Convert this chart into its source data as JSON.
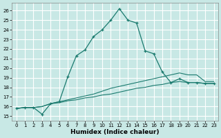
{
  "xlabel": "Humidex (Indice chaleur)",
  "bg_color": "#c8e8e5",
  "grid_color": "#ffffff",
  "line_color": "#1a7a6e",
  "xlim": [
    -0.5,
    23.5
  ],
  "ylim": [
    14.5,
    26.8
  ],
  "xticks": [
    0,
    1,
    2,
    3,
    4,
    5,
    6,
    7,
    8,
    9,
    10,
    11,
    12,
    13,
    14,
    15,
    16,
    17,
    18,
    19,
    20,
    21,
    22,
    23
  ],
  "yticks": [
    15,
    16,
    17,
    18,
    19,
    20,
    21,
    22,
    23,
    24,
    25,
    26
  ],
  "curve_x": [
    0,
    1,
    2,
    3,
    4,
    5,
    6,
    7,
    8,
    9,
    10,
    11,
    12,
    13,
    14,
    15,
    16,
    17,
    18,
    19,
    20,
    21,
    22,
    23
  ],
  "curve_y": [
    15.8,
    15.9,
    15.9,
    15.2,
    16.3,
    16.5,
    19.1,
    21.3,
    21.9,
    23.3,
    24.0,
    25.0,
    26.2,
    25.0,
    24.7,
    21.8,
    21.5,
    19.6,
    18.5,
    18.9,
    18.5,
    18.5,
    18.4,
    18.4
  ],
  "line_upper_x": [
    0,
    1,
    2,
    3,
    4,
    5,
    6,
    7,
    8,
    9,
    10,
    11,
    12,
    13,
    14,
    15,
    16,
    17,
    18,
    19,
    20,
    21,
    22,
    23
  ],
  "line_upper_y": [
    15.8,
    15.9,
    15.9,
    16.0,
    16.3,
    16.5,
    16.7,
    16.9,
    17.1,
    17.3,
    17.6,
    17.9,
    18.1,
    18.3,
    18.5,
    18.7,
    18.9,
    19.1,
    19.3,
    19.5,
    19.3,
    19.3,
    18.6,
    18.6
  ],
  "line_lower_x": [
    0,
    1,
    2,
    3,
    4,
    5,
    6,
    7,
    8,
    9,
    10,
    11,
    12,
    13,
    14,
    15,
    16,
    17,
    18,
    19,
    20,
    21,
    22,
    23
  ],
  "line_lower_y": [
    15.8,
    15.9,
    15.9,
    16.0,
    16.3,
    16.4,
    16.6,
    16.7,
    16.9,
    17.0,
    17.2,
    17.3,
    17.5,
    17.7,
    17.9,
    18.0,
    18.2,
    18.3,
    18.5,
    18.6,
    18.5,
    18.5,
    18.4,
    18.4
  ]
}
